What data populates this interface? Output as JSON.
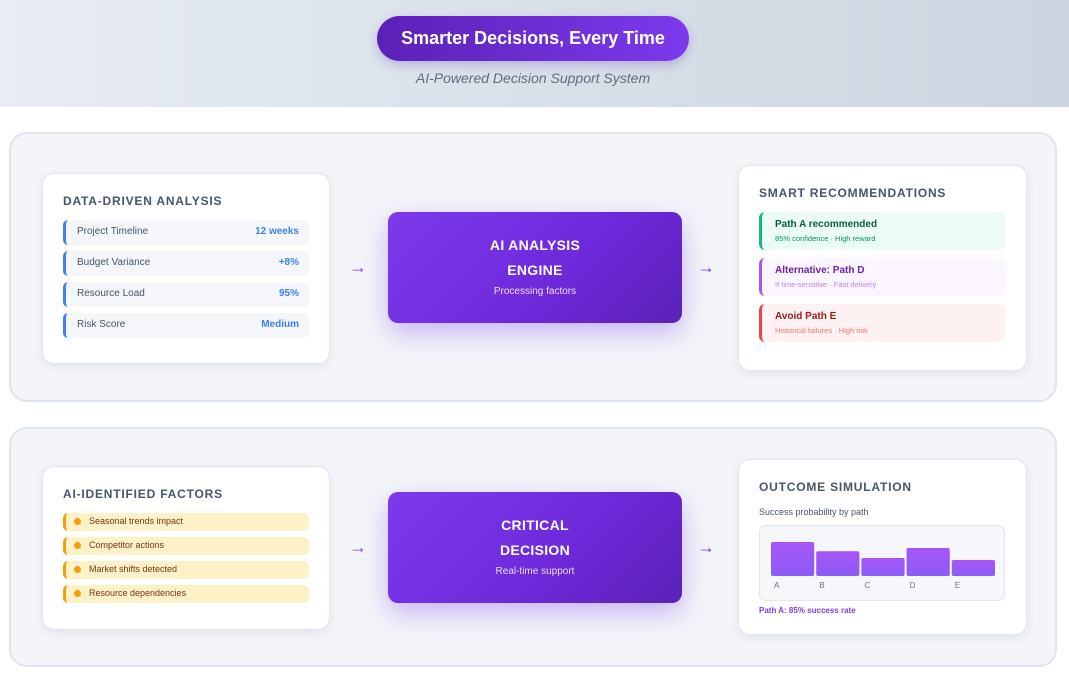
{
  "header": {
    "title": "Smarter Decisions, Every Time",
    "subtitle": "AI-Powered Decision Support System"
  },
  "analysis": {
    "title": "DATA-DRIVEN ANALYSIS",
    "metrics": [
      {
        "label": "Project Timeline",
        "value": "12 weeks"
      },
      {
        "label": "Budget Variance",
        "value": "+8%"
      },
      {
        "label": "Resource Load",
        "value": "95%"
      },
      {
        "label": "Risk Score",
        "value": "Medium"
      }
    ]
  },
  "engine": {
    "line1": "AI ANALYSIS",
    "line2": "ENGINE",
    "caption": "Processing factors"
  },
  "recommendations": {
    "title": "SMART RECOMMENDATIONS",
    "items": [
      {
        "heading": "Path A recommended",
        "detail": "85% confidence · High reward",
        "color": "#10b981"
      },
      {
        "heading": "Alternative: Path D",
        "detail": "If time-sensitive · Fast delivery",
        "color": "#a855f7"
      },
      {
        "heading": "Avoid Path E",
        "detail": "Historical failures · High risk",
        "color": "#ef4444"
      }
    ]
  },
  "factors": {
    "title": "AI-IDENTIFIED FACTORS",
    "items": [
      "Seasonal trends impact",
      "Competitor actions",
      "Market shifts detected",
      "Resource dependencies"
    ]
  },
  "decision": {
    "line1": "CRITICAL",
    "line2": "DECISION",
    "caption": "Real-time support"
  },
  "arrows": {
    "symbol": "→"
  },
  "simulation": {
    "title": "OUTCOME SIMULATION",
    "label": "Success probability by path",
    "footer": "Path A: 85% success rate"
  },
  "chart_data": {
    "type": "bar",
    "categories": [
      "A",
      "B",
      "C",
      "D",
      "E"
    ],
    "values": [
      85,
      62,
      45,
      70,
      40
    ],
    "title": "",
    "xlabel": "",
    "ylabel": "",
    "ylim": [
      0,
      100
    ],
    "grid": false,
    "bar_color": "#8b5cf6"
  }
}
